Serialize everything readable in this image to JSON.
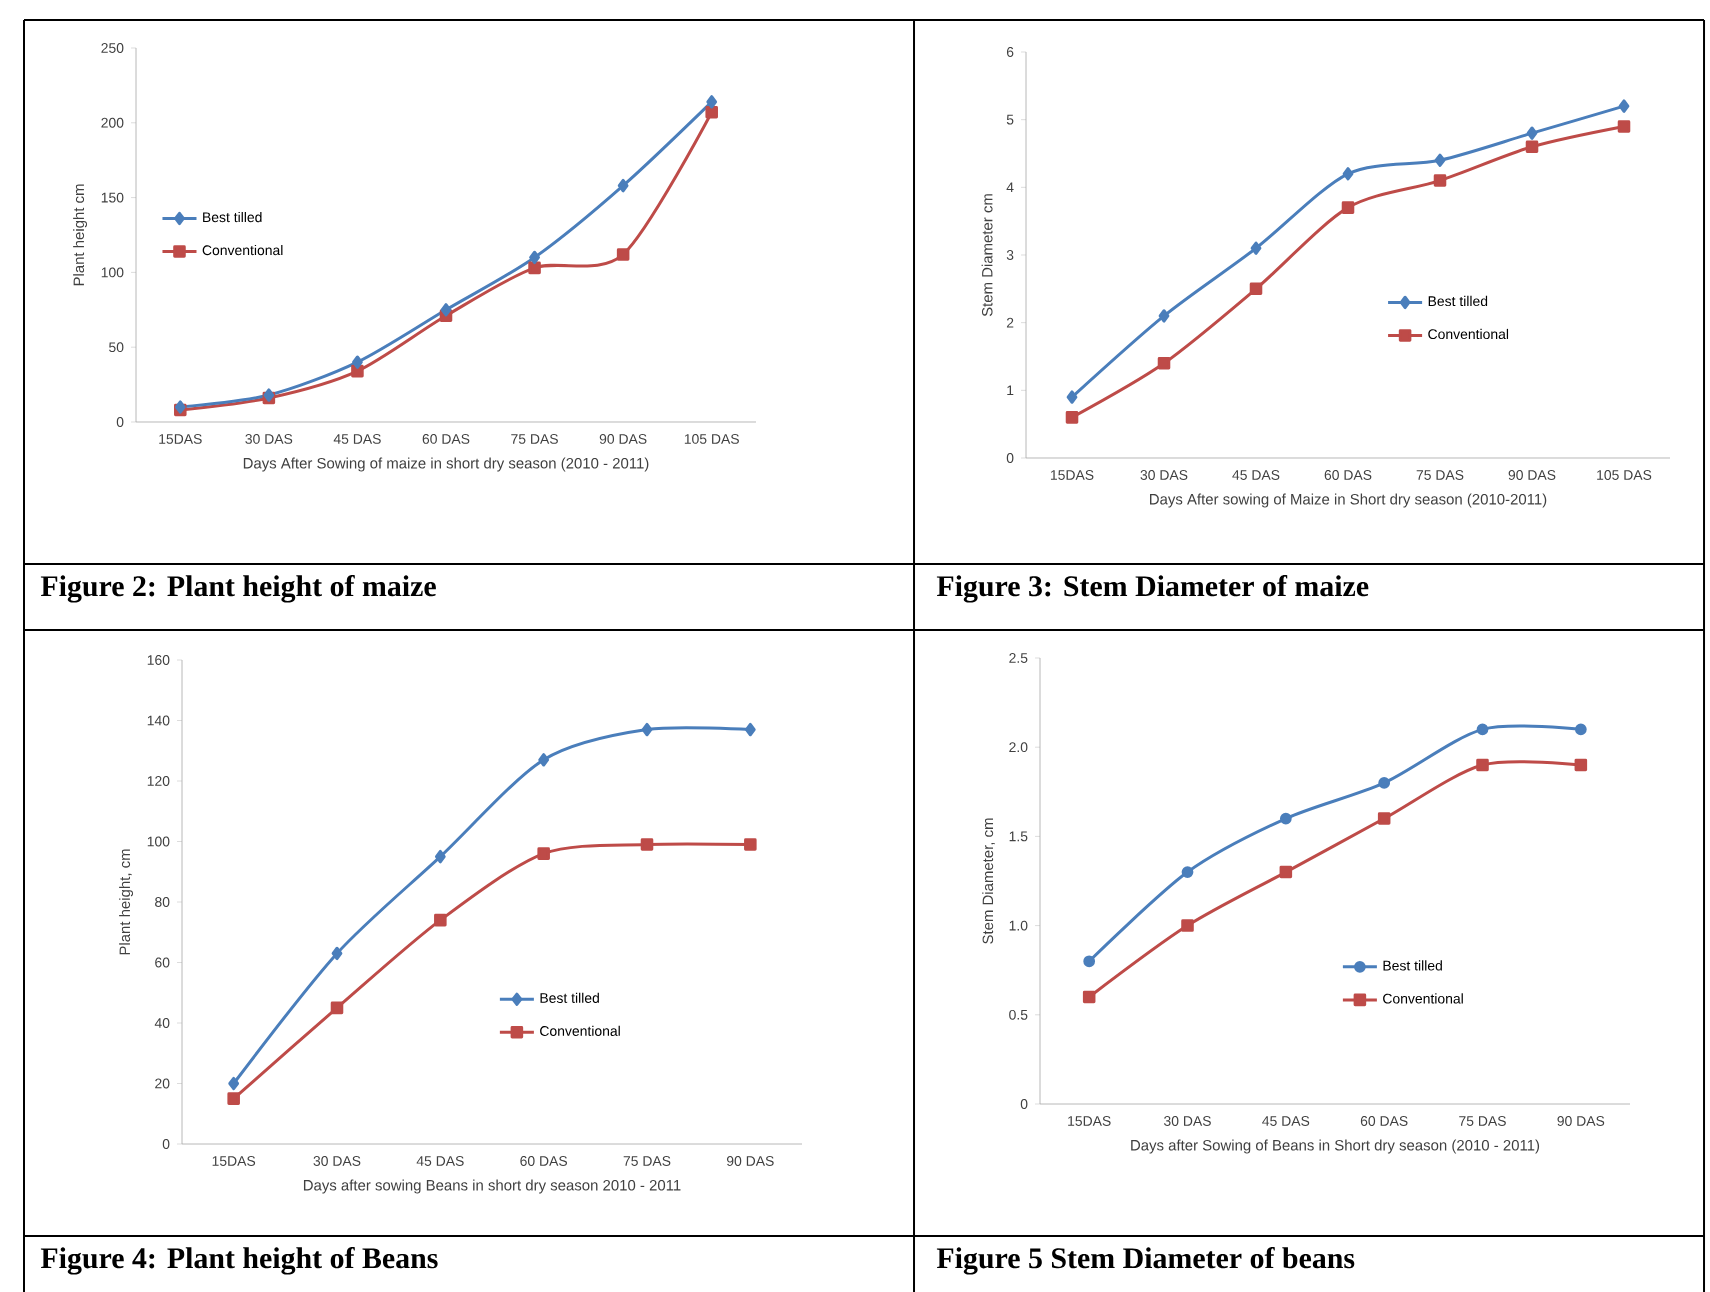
{
  "chart_data": [
    {
      "type": "line",
      "categories": [
        "15DAS",
        "30 DAS",
        "45 DAS",
        "60 DAS",
        "75 DAS",
        "90 DAS",
        "105 DAS"
      ],
      "xlabel": "Days After Sowing of maize in short dry season (2010 - 2011)",
      "ylabel": "Plant height cm",
      "ylim": [
        0,
        250
      ],
      "yticks": [
        0,
        50,
        100,
        150,
        200,
        250
      ],
      "legend": "left",
      "annotations": [
        "Figure  2:  Plant height of maize"
      ],
      "series": [
        {
          "name": "Best tilled",
          "color": "#4a7ebb",
          "marker": "diamond",
          "values": [
            10,
            18,
            40,
            75,
            110,
            158,
            214
          ]
        },
        {
          "name": "Conventional",
          "color": "#be4b48",
          "marker": "square",
          "values": [
            8,
            16,
            34,
            71,
            103,
            112,
            207
          ]
        }
      ]
    },
    {
      "type": "line",
      "categories": [
        "15DAS",
        "30 DAS",
        "45 DAS",
        "60 DAS",
        "75 DAS",
        "90 DAS",
        "105 DAS"
      ],
      "xlabel": "Days After sowing of Maize in Short dry season (2010-2011)",
      "ylabel": "Stem Diameter cm",
      "ylim": [
        0,
        6
      ],
      "yticks": [
        0,
        1,
        2,
        3,
        4,
        5,
        6
      ],
      "legend": "right",
      "annotations": [
        "Figure  3:  Stem Diameter of maize"
      ],
      "series": [
        {
          "name": "Best tilled",
          "color": "#4a7ebb",
          "marker": "diamond",
          "values": [
            0.9,
            2.1,
            3.1,
            4.2,
            4.4,
            4.8,
            5.2
          ]
        },
        {
          "name": "Conventional",
          "color": "#be4b48",
          "marker": "square",
          "values": [
            0.6,
            1.4,
            2.5,
            3.7,
            4.1,
            4.6,
            4.9
          ]
        }
      ]
    },
    {
      "type": "line",
      "categories": [
        "15DAS",
        "30 DAS",
        "45 DAS",
        "60 DAS",
        "75 DAS",
        "90 DAS"
      ],
      "xlabel": "Days after sowing Beans in short dry season 2010 - 2011",
      "ylabel": "Plant height, cm",
      "ylim": [
        0,
        160
      ],
      "yticks": [
        0,
        20,
        40,
        60,
        80,
        100,
        120,
        140,
        160
      ],
      "legend": "bottom right",
      "annotations": [
        "Figure  4: Plant height of Beans"
      ],
      "series": [
        {
          "name": "Best tilled",
          "color": "#4a7ebb",
          "marker": "diamond",
          "values": [
            20,
            63,
            95,
            127,
            137,
            137
          ]
        },
        {
          "name": "Conventional",
          "color": "#be4b48",
          "marker": "square",
          "values": [
            15,
            45,
            74,
            96,
            99,
            99
          ]
        }
      ]
    },
    {
      "type": "line",
      "categories": [
        "15DAS",
        "30 DAS",
        "45 DAS",
        "60 DAS",
        "75 DAS",
        "90 DAS"
      ],
      "xlabel": "Days after Sowing of Beans in Short dry season (2010 - 2011)",
      "ylabel": "Stem Diameter, cm",
      "ylim": [
        0,
        2.5
      ],
      "yticks": [
        0,
        0.5,
        {
          "value": 1,
          "label": "1.0"
        },
        1.5,
        {
          "value": 2,
          "label": "2.0"
        },
        2.5
      ],
      "legend": "bottom right",
      "annotations": [
        "Figure  5 Stem Diameter of beans"
      ],
      "series": [
        {
          "name": "Best tilled",
          "color": "#4a7ebb",
          "marker": "circle",
          "values": [
            0.8,
            1.3,
            1.6,
            1.8,
            2.1,
            2.1
          ]
        },
        {
          "name": "Conventional",
          "color": "#be4b48",
          "marker": "square",
          "values": [
            0.6,
            1.0,
            1.3,
            1.6,
            1.9,
            1.9
          ]
        }
      ]
    }
  ]
}
